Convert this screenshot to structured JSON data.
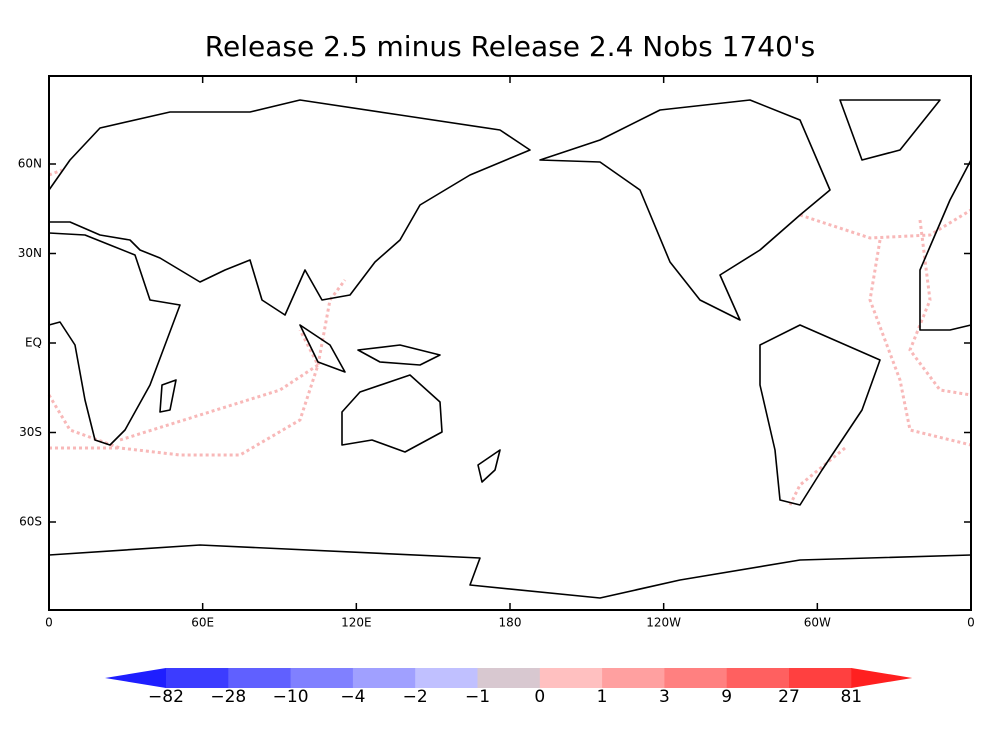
{
  "title": "Release 2.5 minus Release 2.4  Nobs 1740's",
  "map": {
    "x_ticks": [
      "0",
      "60E",
      "120E",
      "180",
      "120W",
      "60W",
      "0"
    ],
    "y_ticks": [
      "60N",
      "30N",
      "EQ",
      "30S",
      "60S"
    ]
  },
  "colorbar": {
    "labels": [
      "−82",
      "−28",
      "−10",
      "−4",
      "−2",
      "−1",
      "0",
      "1",
      "3",
      "9",
      "27",
      "81"
    ],
    "colors": [
      "#1e1eff",
      "#3c3cff",
      "#6060ff",
      "#8080ff",
      "#a0a0ff",
      "#c0c0ff",
      "#d8c8d0",
      "#ffc0c0",
      "#ffa0a0",
      "#ff8080",
      "#ff6060",
      "#ff4040",
      "#ff2020"
    ]
  }
}
